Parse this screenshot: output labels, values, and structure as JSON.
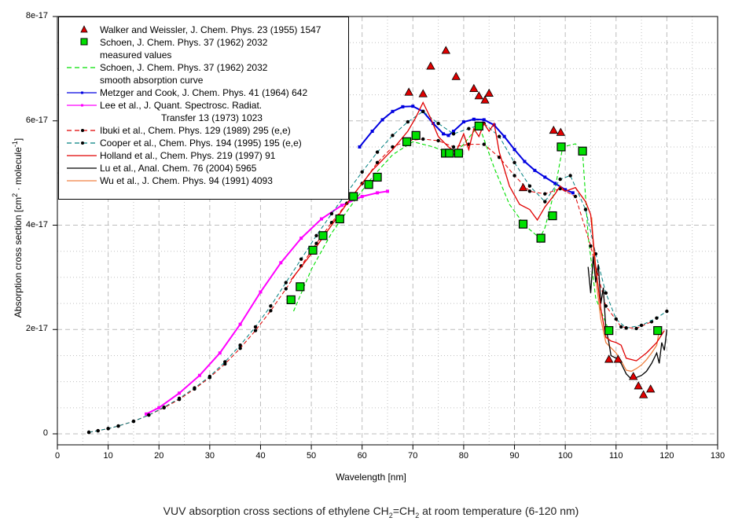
{
  "chart_data": {
    "type": "line",
    "title": "",
    "caption_parts": {
      "pre": "VUV absorption cross sections of ethylene CH",
      "sub1": "2",
      "mid": "=CH",
      "sub2": "2",
      "post": " at room temperature (6-120 nm)"
    },
    "xlabel": "Wavelength [nm]",
    "ylabel_parts": {
      "pre": "Absorption cross section [cm",
      "sup1": "2",
      "mid": " · molecule",
      "sup2": "-1",
      "post": "]"
    },
    "xlim": [
      0,
      130
    ],
    "ylim": [
      -1.5e-18,
      8e-17
    ],
    "x_ticks": [
      0,
      10,
      20,
      30,
      40,
      50,
      60,
      70,
      80,
      90,
      100,
      110,
      120,
      130
    ],
    "x_tick_labels": [
      "0",
      "10",
      "20",
      "30",
      "40",
      "50",
      "60",
      "70",
      "80",
      "90",
      "100",
      "110",
      "120",
      "130"
    ],
    "y_ticks": [
      0,
      2e-17,
      4e-17,
      6e-17,
      8e-17
    ],
    "y_tick_labels": [
      "0",
      "2e-17",
      "4e-17",
      "6e-17",
      "8e-17"
    ],
    "grid": true,
    "legend_position": "top-left",
    "series": [
      {
        "name": "Walker and Weissler, J. Chem. Phys. 23 (1955) 1547",
        "style": "triangle-markers",
        "color": "#e00000",
        "x": [
          69.2,
          72.0,
          73.5,
          76.5,
          78.5,
          82.0,
          83.0,
          84.2,
          85.0,
          91.7,
          97.7,
          99.1,
          108.6,
          110.4,
          113.4,
          114.4,
          115.4,
          116.8
        ],
        "y": [
          6.55e-17,
          6.52e-17,
          7.05e-17,
          7.35e-17,
          6.85e-17,
          6.62e-17,
          6.48e-17,
          6.4e-17,
          6.53e-17,
          4.72e-17,
          5.82e-17,
          5.78e-17,
          1.43e-17,
          1.43e-17,
          1.1e-17,
          9.2e-18,
          7.5e-18,
          8.6e-18
        ]
      },
      {
        "name": "Schoen, J. Chem. Phys. 37 (1962) 2032",
        "name2": "measured values",
        "style": "square-markers",
        "color": "#00e000",
        "x": [
          46.0,
          47.8,
          50.3,
          52.3,
          55.6,
          58.3,
          61.3,
          63.0,
          68.8,
          70.6,
          76.4,
          77.2,
          79.0,
          83.0,
          91.7,
          95.2,
          97.5,
          99.2,
          103.4,
          108.6,
          118.2
        ],
        "y": [
          2.57e-17,
          2.82e-17,
          3.52e-17,
          3.8e-17,
          4.12e-17,
          4.55e-17,
          4.78e-17,
          4.92e-17,
          5.6e-17,
          5.72e-17,
          5.38e-17,
          5.38e-17,
          5.38e-17,
          5.9e-17,
          4.02e-17,
          3.75e-17,
          4.18e-17,
          5.5e-17,
          5.42e-17,
          1.98e-17,
          1.98e-17
        ]
      },
      {
        "name": "Schoen, J. Chem. Phys. 37 (1962) 2032",
        "name2": "smooth absorption curve",
        "style": "dashed",
        "color": "#00e000",
        "x": [
          46.5,
          50,
          54,
          58,
          62,
          66,
          70,
          74,
          78,
          80,
          83,
          86,
          89,
          92,
          95,
          96,
          98,
          99.5,
          102,
          103.4,
          104.5,
          106,
          108.6
        ],
        "y": [
          2.35e-17,
          3.15e-17,
          3.85e-17,
          4.4e-17,
          4.92e-17,
          5.35e-17,
          5.6e-17,
          5.5e-17,
          5.35e-17,
          5.55e-17,
          5.92e-17,
          5.1e-17,
          4.4e-17,
          4e-17,
          3.75e-17,
          3.95e-17,
          4.7e-17,
          5.5e-17,
          5.56e-17,
          5.42e-17,
          3.8e-17,
          2.6e-17,
          1.98e-17
        ]
      },
      {
        "name": "Metzger and Cook, J. Chem. Phys. 41 (1964) 642",
        "style": "line-dot-markers",
        "color": "#0000e0",
        "x": [
          59.5,
          62,
          64,
          66,
          68,
          70,
          72,
          74,
          76,
          77,
          78,
          80,
          82,
          84,
          86,
          88,
          90,
          92,
          94,
          96,
          98,
          100,
          101.5
        ],
        "y": [
          5.5e-17,
          5.8e-17,
          6.02e-17,
          6.18e-17,
          6.27e-17,
          6.28e-17,
          6.18e-17,
          5.95e-17,
          5.75e-17,
          5.72e-17,
          5.8e-17,
          5.98e-17,
          6.03e-17,
          6.02e-17,
          5.92e-17,
          5.7e-17,
          5.45e-17,
          5.22e-17,
          5.05e-17,
          4.92e-17,
          4.8e-17,
          4.68e-17,
          4.62e-17
        ]
      },
      {
        "name": "Lee et al., J. Quant. Spectrosc. Radiat.",
        "name2": "Transfer 13 (1973) 1023",
        "style": "line-dot-markers",
        "color": "#ff00ff",
        "x": [
          17.5,
          20,
          24,
          28,
          32,
          36,
          40,
          44,
          48,
          52,
          56,
          60,
          63,
          65
        ],
        "y": [
          3.8e-18,
          5e-18,
          7.8e-18,
          1.12e-17,
          1.55e-17,
          2.1e-17,
          2.72e-17,
          3.28e-17,
          3.75e-17,
          4.12e-17,
          4.38e-17,
          4.55e-17,
          4.62e-17,
          4.65e-17
        ]
      },
      {
        "name": "Ibuki et al., Chem. Phys. 129 (1989) 295 (e,e)",
        "style": "dashed-dot-markers",
        "color": "#e00000",
        "x": [
          6.2,
          8,
          10,
          12,
          15,
          18,
          21,
          24,
          27,
          30,
          33,
          36,
          39,
          42,
          45,
          48,
          51,
          54,
          57,
          60,
          63,
          66,
          69,
          72,
          75,
          78,
          81,
          84,
          87,
          90,
          93,
          96,
          99,
          102,
          105,
          108,
          111,
          114,
          117
        ],
        "y": [
          3e-19,
          6e-19,
          1e-18,
          1.5e-18,
          2.4e-18,
          3.6e-18,
          5e-18,
          6.6e-18,
          8.6e-18,
          1.08e-17,
          1.34e-17,
          1.64e-17,
          1.98e-17,
          2.36e-17,
          2.78e-17,
          3.22e-17,
          3.65e-17,
          4.05e-17,
          4.42e-17,
          4.8e-17,
          5.2e-17,
          5.5e-17,
          5.62e-17,
          5.65e-17,
          5.62e-17,
          5.5e-17,
          5.55e-17,
          5.55e-17,
          5.3e-17,
          4.95e-17,
          4.65e-17,
          4.6e-17,
          4.7e-17,
          4.55e-17,
          3.6e-17,
          2.45e-17,
          2.05e-17,
          2.02e-17,
          2.15e-17
        ]
      },
      {
        "name": "Cooper et al., Chem. Phys. 194 (1995) 195 (e,e)",
        "style": "dashed-dot-markers",
        "color": "#008080",
        "x": [
          6.2,
          8,
          10,
          12,
          15,
          18,
          21,
          24,
          27,
          30,
          33,
          36,
          39,
          42,
          45,
          48,
          51,
          54,
          57,
          60,
          63,
          66,
          69,
          72,
          75,
          78,
          81,
          84,
          87,
          90,
          93,
          96,
          99,
          101,
          104,
          106,
          108,
          110,
          112,
          115,
          118,
          120
        ],
        "y": [
          3e-19,
          6e-19,
          1e-18,
          1.5e-18,
          2.4e-18,
          3.6e-18,
          5.1e-18,
          6.8e-18,
          8.8e-18,
          1.1e-17,
          1.38e-17,
          1.7e-17,
          2.05e-17,
          2.45e-17,
          2.9e-17,
          3.35e-17,
          3.8e-17,
          4.22e-17,
          4.62e-17,
          5.02e-17,
          5.4e-17,
          5.72e-17,
          5.98e-17,
          6.18e-17,
          5.95e-17,
          5.75e-17,
          5.85e-17,
          5.95e-17,
          5.7e-17,
          5.2e-17,
          4.75e-17,
          4.45e-17,
          4.88e-17,
          4.95e-17,
          4.3e-17,
          3.45e-17,
          2.7e-17,
          2.2e-17,
          2.03e-17,
          2.08e-17,
          2.22e-17,
          2.35e-17
        ]
      },
      {
        "name": "Holland et al., Chem. Phys. 219 (1997) 91",
        "style": "solid",
        "color": "#e00000",
        "x": [
          46,
          50,
          54,
          58,
          62,
          66,
          69,
          70.5,
          72,
          73.5,
          75,
          77,
          78.5,
          80,
          81,
          82,
          83,
          84,
          85,
          86,
          87,
          89,
          91,
          93,
          94.5,
          96,
          98,
          99,
          100,
          102,
          104,
          105,
          106,
          107,
          108,
          109,
          110,
          111,
          112,
          114,
          116,
          118,
          119.5
        ],
        "y": [
          2.95e-17,
          3.45e-17,
          4e-17,
          4.55e-17,
          5.05e-17,
          5.45e-17,
          5.8e-17,
          6.05e-17,
          6.35e-17,
          6.05e-17,
          5.7e-17,
          5.5e-17,
          5.4e-17,
          5.75e-17,
          5.45e-17,
          5.85e-17,
          5.7e-17,
          5.95e-17,
          5.8e-17,
          5.95e-17,
          5.4e-17,
          4.75e-17,
          4.4e-17,
          4.3e-17,
          4.1e-17,
          4.35e-17,
          4.6e-17,
          4.75e-17,
          4.65e-17,
          4.72e-17,
          4.45e-17,
          4.2e-17,
          3.2e-17,
          2.4e-17,
          1.85e-17,
          1.78e-17,
          1.75e-17,
          1.7e-17,
          1.45e-17,
          1.4e-17,
          1.55e-17,
          1.75e-17,
          1.98e-17
        ]
      },
      {
        "name": "Lu et al., Anal. Chem. 76 (2004) 5965",
        "style": "solid",
        "color": "#000000",
        "x": [
          104.5,
          105,
          105.5,
          106,
          106.5,
          107,
          107.5,
          108,
          108.5,
          109,
          110,
          111,
          112,
          113,
          114,
          115,
          116,
          117,
          118,
          118.5,
          119,
          119.5,
          120
        ],
        "y": [
          3.2e-17,
          2.7e-17,
          3.4e-17,
          2.9e-17,
          3.25e-17,
          2.5e-17,
          2.8e-17,
          2e-17,
          1.8e-17,
          1.5e-17,
          1.45e-17,
          1.35e-17,
          1.15e-17,
          1.05e-17,
          1.08e-17,
          1.12e-17,
          1.2e-17,
          1.35e-17,
          1.55e-17,
          1.35e-17,
          1.75e-17,
          1.6e-17,
          2e-17
        ]
      },
      {
        "name": "Wu et al., J. Chem. Phys. 94 (1991) 4093",
        "style": "solid",
        "color": "#f08040",
        "x": [
          105.2,
          105.6,
          106,
          107,
          108,
          109,
          110,
          111,
          112,
          113,
          114,
          115,
          116,
          117,
          118,
          118.5
        ],
        "y": [
          4.15e-17,
          3.5e-17,
          3e-17,
          2.2e-17,
          1.75e-17,
          1.65e-17,
          1.55e-17,
          1.4e-17,
          1.22e-17,
          1.2e-17,
          1.25e-17,
          1.32e-17,
          1.42e-17,
          1.55e-17,
          1.7e-17,
          1.98e-17
        ]
      }
    ]
  }
}
